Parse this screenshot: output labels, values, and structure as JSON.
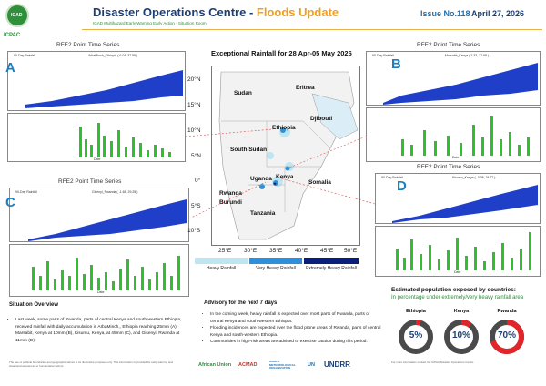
{
  "header": {
    "org": "ICPAC",
    "org_badge": "IGAD",
    "title_main": "Disaster Operations Centre - ",
    "title_accent": "Floods Update",
    "subtitle": "IGAD Multihazard Early Warning Early Action - Situation Room",
    "issue": "Issue No.118",
    "date": "April 27, 2026"
  },
  "panels": {
    "a": {
      "letter": "A",
      "heading": "RFE2 Point Time Series",
      "left_label": "90-Day Rainfall",
      "station": "ArbaMinch_Ethiopia ( 6.04, 37.55 )",
      "y1": "Rainfall vs Normal (mm)",
      "y2": "Daily Rainfall (mm)",
      "x": "Date"
    },
    "b": {
      "letter": "B",
      "heading": "RFE2 Point Time Series",
      "left_label": "90-Day Rainfall",
      "station": "Marsabit_Kenya ( 2.33, 37.98 )",
      "y1": "Rainfall vs Normal (mm)",
      "y2": "Daily Rainfall (mm)",
      "x": "Date"
    },
    "c": {
      "letter": "C",
      "heading": "RFE2 Point Time Series",
      "left_label": "90-Day Rainfall",
      "station": "Gisenyi_Rwanda ( -1.68, 29.25 )",
      "y1": "Rainfall vs Normal (mm)",
      "y2": "Daily Rainfall (mm)",
      "x": "Date"
    },
    "d": {
      "letter": "D",
      "heading": "RFE2 Point Time Series",
      "left_label": "90-Day Rainfall",
      "station": "Kisumu_Kenya ( -0.08, 34.77 )",
      "y1": "Rainfall vs Normal (mm)",
      "y2": "Daily Rainfall (mm)",
      "x": "Date"
    }
  },
  "map": {
    "title": "Exceptional Rainfall for 28 Apr-05 May 2026",
    "countries": [
      "Sudan",
      "Eritrea",
      "Djibouti",
      "Ethiopia",
      "South Sudan",
      "Somalia",
      "Kenya",
      "Uganda",
      "Rwanda",
      "Burundi",
      "Tanzania"
    ],
    "lat_ticks": [
      "20°N",
      "15°N",
      "10°N",
      "5°N",
      "0°",
      "5°S",
      "10°S"
    ],
    "lon_ticks": [
      "25°E",
      "30°E",
      "35°E",
      "40°E",
      "45°E",
      "50°E"
    ],
    "legend": [
      {
        "label": "Heavy Rainfall",
        "color": "#bfe6f0"
      },
      {
        "label": "Very Heavy Rainfall",
        "color": "#2f8fd8"
      },
      {
        "label": "Extremely Heavy Rainfall",
        "color": "#0a1f7a"
      }
    ]
  },
  "situation": {
    "title": "Situation Overview",
    "bullets": [
      "Last week, some parts of Rwanda, parts of central Kenya and south-western Ethiopia, received rainfall with daily accumulation in ArbaMinch,, Ethiopia reaching 25mm (A), Marsabit, Kenya at 10mm (B), Kisumu, Kenya, at 45mm (C), and Gisenyi, Rwanda at 11mm (D)."
    ]
  },
  "advisory": {
    "title": "Advisory for the next 7 days",
    "bullets": [
      "In the coming week, heavy rainfall is expected over most parts of Rwanda, parts of central Kenya and south-western Ethiopia.",
      "Flooding incidences are expected over the flood prone areas of Rwanda, parts of central Kenya and south-western Ethiopia.",
      "Communities in high-risk areas are advised to exercise caution during this period."
    ]
  },
  "population": {
    "title": "Estimated population exposed by countries:",
    "subtitle": "In percentage under extremely/very heavy rainfall area",
    "items": [
      {
        "country": "Ethiopia",
        "value": "5%",
        "pct": 5
      },
      {
        "country": "Kenya",
        "value": "10%",
        "pct": 10
      },
      {
        "country": "Rwanda",
        "value": "70%",
        "pct": 70
      }
    ]
  },
  "footer": {
    "disclaimer": "The use of political boundaries and geographic names is for illustrative purposes only. This information is provided for early warning and situational awareness to humanitarian actors.",
    "contact": "For more information contact the ICPAC Disaster Operations Centre.",
    "partners": [
      "African Union",
      "ACMAD",
      "WORLD METEOROLOGICAL ORGANIZATION",
      "UN",
      "UNDRR"
    ]
  }
}
